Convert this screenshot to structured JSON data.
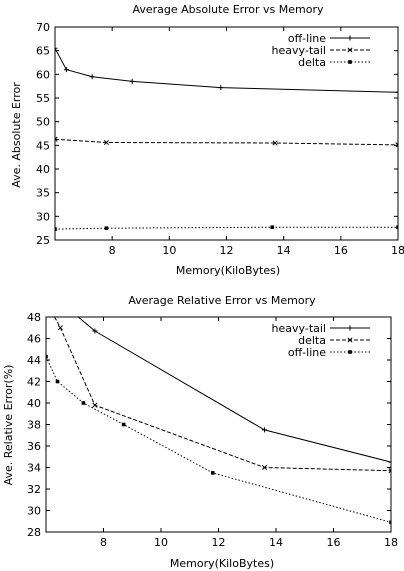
{
  "chart_data": [
    {
      "type": "line",
      "title": "Average Absolute Error vs Memory",
      "xlabel": "Memory(KiloBytes)",
      "ylabel": "Ave. Absolute Error",
      "xlim": [
        6,
        18
      ],
      "ylim": [
        25,
        70
      ],
      "xticks": [
        8,
        10,
        12,
        14,
        16,
        18
      ],
      "yticks": [
        25,
        30,
        35,
        40,
        45,
        50,
        55,
        60,
        65,
        70
      ],
      "legend_position": "top-right",
      "grid": false,
      "series": [
        {
          "name": "off-line",
          "style": "solid",
          "marker": "plus",
          "x": [
            6.0,
            6.4,
            7.3,
            8.7,
            11.8,
            18.0
          ],
          "y": [
            65.5,
            61.0,
            59.5,
            58.5,
            57.2,
            56.2
          ]
        },
        {
          "name": "heavy-tail",
          "style": "dash",
          "marker": "cross",
          "x": [
            6.0,
            7.8,
            13.7,
            18.0
          ],
          "y": [
            46.3,
            45.6,
            45.5,
            45.1
          ]
        },
        {
          "name": "delta",
          "style": "dot",
          "marker": "square",
          "x": [
            6.0,
            7.8,
            13.6,
            18.0
          ],
          "y": [
            27.3,
            27.5,
            27.7,
            27.7
          ]
        }
      ]
    },
    {
      "type": "line",
      "title": "Average Relative Error vs Memory",
      "xlabel": "Memory(KiloBytes)",
      "ylabel": "Ave. Relative Error(%)",
      "xlim": [
        6,
        18
      ],
      "ylim": [
        28,
        48
      ],
      "xticks": [
        8,
        10,
        12,
        14,
        16,
        18
      ],
      "yticks": [
        28,
        30,
        32,
        34,
        36,
        38,
        40,
        42,
        44,
        46,
        48
      ],
      "legend_position": "top-right",
      "grid": false,
      "series": [
        {
          "name": "heavy-tail",
          "style": "solid",
          "marker": "plus",
          "x": [
            6.9,
            7.7,
            13.6,
            18.0
          ],
          "y": [
            48.5,
            46.7,
            37.5,
            34.5
          ]
        },
        {
          "name": "delta",
          "style": "dash",
          "marker": "cross",
          "x": [
            6.1,
            6.5,
            7.7,
            13.6,
            18.0
          ],
          "y": [
            49.0,
            47.0,
            39.8,
            34.0,
            33.7
          ]
        },
        {
          "name": "off-line",
          "style": "dot",
          "marker": "square",
          "x": [
            6.0,
            6.4,
            7.3,
            8.7,
            11.8,
            18.0
          ],
          "y": [
            44.3,
            42.0,
            40.0,
            38.0,
            33.5,
            28.9
          ]
        }
      ]
    }
  ]
}
